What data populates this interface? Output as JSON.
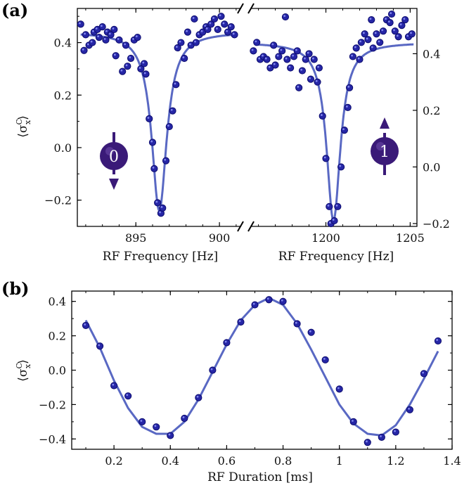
{
  "chart_data": [
    {
      "type": "scatter",
      "panel_label": "(a)",
      "ylabel": "⟨σ",
      "ylabel_sup": "C",
      "ylabel_sub": "x",
      "ylabel_close": "⟩",
      "left": {
        "xlabel": "RF Frequency [Hz]",
        "xlim": [
          891.5,
          901.3
        ],
        "ylim": [
          -0.3,
          0.53
        ],
        "xticks": [
          895,
          900
        ],
        "yticks": [
          -0.2,
          0.0,
          0.2,
          0.4
        ],
        "ytick_labels": [
          "−0.2",
          "0.0",
          "0.2",
          "0.4"
        ],
        "xtick_labels": [
          "895",
          "900"
        ],
        "qubit_state_label": "0",
        "points_x": [
          891.7,
          891.9,
          892.0,
          892.2,
          892.4,
          892.5,
          892.7,
          892.8,
          893.0,
          893.2,
          893.3,
          893.5,
          893.7,
          893.8,
          894.0,
          894.2,
          894.4,
          894.5,
          894.7,
          894.9,
          895.1,
          895.3,
          895.5,
          895.6,
          895.8,
          896.0,
          896.1,
          896.3,
          896.5,
          896.6,
          896.8,
          897.0,
          897.2,
          897.4,
          897.5,
          897.7,
          897.9,
          898.1,
          898.3,
          898.5,
          898.6,
          898.8,
          899.0,
          899.2,
          899.3,
          899.5,
          899.7,
          899.9,
          900.1,
          900.3,
          900.5,
          900.7,
          900.9
        ],
        "points_y": [
          0.47,
          0.37,
          0.43,
          0.39,
          0.4,
          0.44,
          0.45,
          0.42,
          0.46,
          0.41,
          0.44,
          0.43,
          0.45,
          0.35,
          0.41,
          0.29,
          0.39,
          0.31,
          0.34,
          0.41,
          0.42,
          0.3,
          0.32,
          0.28,
          0.11,
          0.02,
          -0.08,
          -0.21,
          -0.25,
          -0.23,
          -0.05,
          0.08,
          0.14,
          0.24,
          0.38,
          0.4,
          0.34,
          0.44,
          0.39,
          0.49,
          0.4,
          0.43,
          0.44,
          0.46,
          0.45,
          0.47,
          0.49,
          0.45,
          0.5,
          0.47,
          0.44,
          0.46,
          0.43
        ],
        "fit_center": 896.4,
        "fit_width": 0.55,
        "fit_depth": 0.68,
        "fit_baseline": 0.44
      },
      "right": {
        "xlabel": "RF Frequency [Hz]",
        "xlim": [
          1195.6,
          1205.4
        ],
        "ylim": [
          -0.21,
          0.56
        ],
        "xticks": [
          1200,
          1205
        ],
        "yticks": [
          -0.2,
          0.0,
          0.2,
          0.4
        ],
        "ytick_labels": [
          "−0.2",
          "0.0",
          "0.2",
          "0.4"
        ],
        "xtick_labels": [
          "1200",
          "1205"
        ],
        "qubit_state_label": "1",
        "points_x": [
          1195.7,
          1195.9,
          1196.1,
          1196.3,
          1196.5,
          1196.7,
          1196.9,
          1197.0,
          1197.2,
          1197.4,
          1197.6,
          1197.7,
          1197.9,
          1198.1,
          1198.3,
          1198.4,
          1198.6,
          1198.8,
          1199.0,
          1199.1,
          1199.3,
          1199.5,
          1199.6,
          1199.8,
          1200.0,
          1200.2,
          1200.3,
          1200.5,
          1200.7,
          1200.9,
          1201.1,
          1201.3,
          1201.4,
          1201.6,
          1201.8,
          1202.0,
          1202.1,
          1202.3,
          1202.5,
          1202.7,
          1202.8,
          1203.0,
          1203.2,
          1203.4,
          1203.6,
          1203.8,
          1203.9,
          1204.1,
          1204.3,
          1204.5,
          1204.7,
          1204.9,
          1205.1
        ],
        "points_y": [
          0.41,
          0.44,
          0.38,
          0.39,
          0.38,
          0.35,
          0.43,
          0.36,
          0.39,
          0.41,
          0.53,
          0.38,
          0.35,
          0.39,
          0.41,
          0.28,
          0.34,
          0.38,
          0.4,
          0.31,
          0.38,
          0.3,
          0.35,
          0.18,
          0.03,
          -0.14,
          -0.2,
          -0.19,
          -0.14,
          0.0,
          0.13,
          0.21,
          0.28,
          0.39,
          0.42,
          0.38,
          0.44,
          0.47,
          0.45,
          0.52,
          0.42,
          0.47,
          0.44,
          0.48,
          0.52,
          0.51,
          0.54,
          0.48,
          0.46,
          0.5,
          0.52,
          0.46,
          0.47
        ],
        "fit_center": 1200.45,
        "fit_width": 0.5,
        "fit_depth": 0.63,
        "fit_baseline": 0.44
      }
    },
    {
      "type": "scatter",
      "panel_label": "(b)",
      "xlabel": "RF Duration [ms]",
      "ylabel": "⟨σ",
      "ylabel_sup": "C",
      "ylabel_sub": "x",
      "ylabel_close": "⟩",
      "xlim": [
        0.05,
        1.4
      ],
      "ylim": [
        -0.46,
        0.46
      ],
      "xticks": [
        0.2,
        0.4,
        0.6,
        0.8,
        1.0,
        1.2,
        1.4
      ],
      "xtick_labels": [
        "0.2",
        "0.4",
        "0.6",
        "0.8",
        "1",
        "1.2",
        "1.4"
      ],
      "yticks": [
        -0.4,
        -0.2,
        0.0,
        0.2,
        0.4
      ],
      "ytick_labels": [
        "−0.4",
        "−0.2",
        "0.0",
        "0.2",
        "0.4"
      ],
      "x": [
        0.1,
        0.15,
        0.2,
        0.25,
        0.3,
        0.35,
        0.4,
        0.45,
        0.5,
        0.55,
        0.6,
        0.65,
        0.7,
        0.75,
        0.8,
        0.85,
        0.9,
        0.95,
        1.0,
        1.05,
        1.1,
        1.15,
        1.2,
        1.25,
        1.3,
        1.35
      ],
      "y": [
        0.26,
        0.14,
        -0.09,
        -0.15,
        -0.3,
        -0.33,
        -0.38,
        -0.28,
        -0.16,
        0.0,
        0.16,
        0.28,
        0.38,
        0.41,
        0.4,
        0.27,
        0.22,
        0.06,
        -0.11,
        -0.3,
        -0.42,
        -0.39,
        -0.36,
        -0.23,
        -0.02,
        0.17
      ],
      "fit_x": [
        0.1,
        0.15,
        0.2,
        0.25,
        0.3,
        0.35,
        0.4,
        0.45,
        0.5,
        0.55,
        0.6,
        0.65,
        0.7,
        0.75,
        0.8,
        0.85,
        0.9,
        0.95,
        1.0,
        1.05,
        1.1,
        1.15,
        1.2,
        1.25,
        1.3,
        1.35
      ],
      "fit_y": [
        0.29,
        0.13,
        -0.06,
        -0.22,
        -0.33,
        -0.37,
        -0.37,
        -0.3,
        -0.17,
        -0.01,
        0.15,
        0.29,
        0.38,
        0.42,
        0.38,
        0.27,
        0.12,
        -0.04,
        -0.2,
        -0.31,
        -0.37,
        -0.38,
        -0.32,
        -0.2,
        -0.05,
        0.11
      ]
    }
  ],
  "colors": {
    "points": "#2626a6",
    "points_edge": "#0c0c6e",
    "fit": "#5060c0",
    "qubit": "#3a1a78"
  }
}
